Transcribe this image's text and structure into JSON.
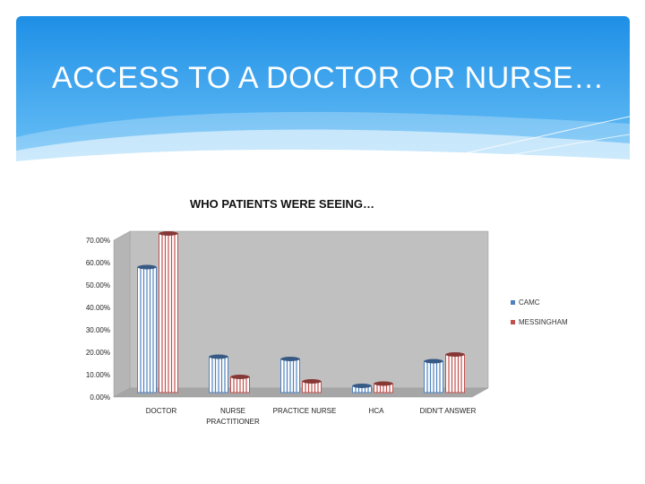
{
  "slide": {
    "title": "ACCESS TO A DOCTOR OR NURSE…"
  },
  "colors": {
    "title_band_top": "#1e8fe6",
    "title_band_bottom": "#6ec3f7",
    "camc": "#4f81bd",
    "messingham": "#c0504d",
    "plot_wall": "#c0c0c0",
    "plot_floor": "#a6a6a6"
  },
  "chart_data": {
    "type": "bar",
    "style": "3d-cylinder",
    "title": "WHO PATIENTS WERE SEEING…",
    "categories": [
      "DOCTOR",
      "NURSE PRACTITIONER",
      "PRACTICE NURSE",
      "HCA",
      "DIDN'T ANSWER"
    ],
    "series": [
      {
        "name": "CAMC",
        "values": [
          56,
          16,
          15,
          3,
          14
        ]
      },
      {
        "name": "MESSINGHAM",
        "values": [
          71,
          7,
          5,
          4,
          17
        ]
      }
    ],
    "ylim": [
      0,
      70
    ],
    "yticks": [
      "0.00%",
      "10.00%",
      "20.00%",
      "30.00%",
      "40.00%",
      "50.00%",
      "60.00%",
      "70.00%"
    ],
    "legend_position": "right",
    "grid": false
  }
}
